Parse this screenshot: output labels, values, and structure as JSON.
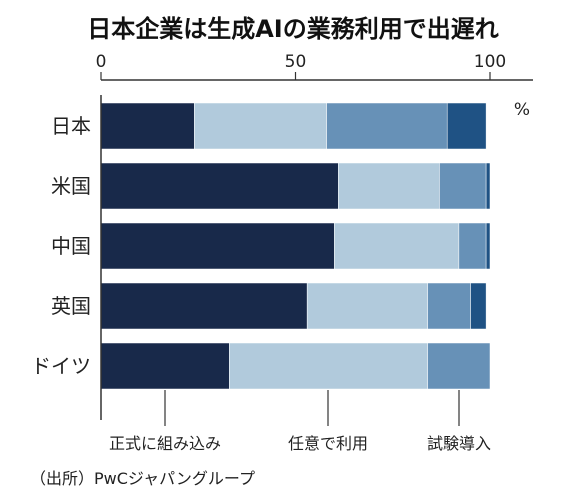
{
  "chart_data": {
    "type": "bar",
    "orientation": "horizontal",
    "stacked": true,
    "title": "日本企業は生成AIの業務利用で出遅れ",
    "unit": "%",
    "xlim": [
      0,
      100
    ],
    "xticks": [
      "0",
      "50",
      "100"
    ],
    "categories": [
      "日本",
      "米国",
      "中国",
      "英国",
      "ドイツ"
    ],
    "series": [
      {
        "name": "正式に組み込み",
        "color": "#18294a",
        "values": [
          24,
          61,
          60,
          53,
          33
        ]
      },
      {
        "name": "任意で利用",
        "color": "#b1cadc",
        "values": [
          34,
          26,
          32,
          31,
          51
        ]
      },
      {
        "name": "試験導入",
        "color": "#6791b7",
        "values": [
          31,
          12,
          7,
          11,
          16
        ]
      },
      {
        "name": "",
        "color": "#1f5284",
        "values": [
          10,
          1,
          1,
          4,
          0
        ]
      }
    ],
    "legend_position": "bottom",
    "source": "（出所）PwCジャパングループ"
  }
}
